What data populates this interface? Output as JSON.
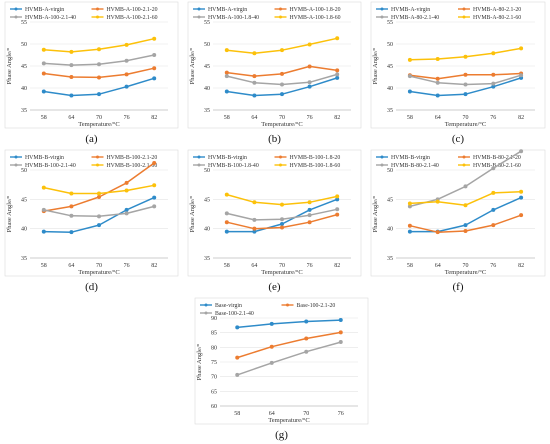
{
  "colors": {
    "blue": "#2e8bc9",
    "orange": "#ec7c30",
    "gray": "#a5a5a5",
    "yellow": "#fcc10a"
  },
  "chart_data": [
    {
      "type": "line",
      "panel_label": "(a)",
      "xlabel": "Temperature/°C",
      "ylabel": "Phase Angle/°",
      "categories": [
        "58",
        "64",
        "70",
        "76",
        "82"
      ],
      "ylim": [
        35,
        55
      ],
      "yticks": [
        35,
        40,
        45,
        50,
        55
      ],
      "series": [
        {
          "name": "HVMB-A-virgin",
          "color": "#2e8bc9",
          "values": [
            39.2,
            38.3,
            38.6,
            40.3,
            42.2
          ]
        },
        {
          "name": "HVMB-A-100-2.1-20",
          "color": "#ec7c30",
          "values": [
            43.3,
            42.5,
            42.4,
            43.1,
            44.5
          ]
        },
        {
          "name": "HVMB-A-100-2.1-40",
          "color": "#a5a5a5",
          "values": [
            45.6,
            45.2,
            45.4,
            46.2,
            47.5
          ]
        },
        {
          "name": "HVMB-A-100-2.1-60",
          "color": "#fcc10a",
          "values": [
            48.7,
            48.2,
            48.8,
            49.8,
            51.2
          ]
        }
      ]
    },
    {
      "type": "line",
      "panel_label": "(b)",
      "xlabel": "Temperature/°C",
      "ylabel": "Phase Angle/°",
      "categories": [
        "58",
        "64",
        "70",
        "76",
        "82"
      ],
      "ylim": [
        35,
        55
      ],
      "yticks": [
        35,
        40,
        45,
        50,
        55
      ],
      "series": [
        {
          "name": "HVMB-A-virgin",
          "color": "#2e8bc9",
          "values": [
            39.2,
            38.3,
            38.6,
            40.3,
            42.3
          ]
        },
        {
          "name": "HVMB-A-100-1.8-20",
          "color": "#ec7c30",
          "values": [
            43.5,
            42.7,
            43.2,
            44.9,
            44.0
          ]
        },
        {
          "name": "HVMB-A-100-1.8-40",
          "color": "#a5a5a5",
          "values": [
            42.7,
            41.2,
            40.8,
            41.3,
            43.1
          ]
        },
        {
          "name": "HVMB-A-100-1.8-60",
          "color": "#fcc10a",
          "values": [
            48.6,
            47.9,
            48.6,
            49.9,
            51.3
          ]
        }
      ]
    },
    {
      "type": "line",
      "panel_label": "(c)",
      "xlabel": "Temperature/°C",
      "ylabel": "Phase Angle/°",
      "categories": [
        "58",
        "64",
        "70",
        "76",
        "82"
      ],
      "ylim": [
        35,
        55
      ],
      "yticks": [
        35,
        40,
        45,
        50,
        55
      ],
      "series": [
        {
          "name": "HVMB-A-virgin",
          "color": "#2e8bc9",
          "values": [
            39.2,
            38.3,
            38.6,
            40.3,
            42.3
          ]
        },
        {
          "name": "HVMB-A-80-2.1-20",
          "color": "#ec7c30",
          "values": [
            42.9,
            42.1,
            43.0,
            43.0,
            43.3
          ]
        },
        {
          "name": "HVMB-A-80-2.1-40",
          "color": "#a5a5a5",
          "values": [
            42.7,
            41.2,
            40.8,
            41.0,
            42.9
          ]
        },
        {
          "name": "HVMB-A-80-2.1-60",
          "color": "#fcc10a",
          "values": [
            46.4,
            46.6,
            47.1,
            47.9,
            49.0
          ]
        }
      ]
    },
    {
      "type": "line",
      "panel_label": "(d)",
      "xlabel": "Temperature/°C",
      "ylabel": "Phase Angle/°",
      "categories": [
        "58",
        "64",
        "70",
        "76",
        "82"
      ],
      "ylim": [
        35,
        50
      ],
      "yticks": [
        35,
        40,
        45,
        50
      ],
      "series": [
        {
          "name": "HVMB-B-virgin",
          "color": "#2e8bc9",
          "values": [
            39.5,
            39.4,
            40.6,
            43.2,
            45.3
          ]
        },
        {
          "name": "HVMB-B-100-2.1-20",
          "color": "#ec7c30",
          "values": [
            43.0,
            43.8,
            45.4,
            47.8,
            51.2
          ]
        },
        {
          "name": "HVMB-B-100-2.1-40",
          "color": "#a5a5a5",
          "values": [
            43.2,
            42.2,
            42.1,
            42.6,
            43.8
          ]
        },
        {
          "name": "HVMB-B-100-2.1-60",
          "color": "#fcc10a",
          "values": [
            47.0,
            46.0,
            46.0,
            46.5,
            47.4
          ]
        }
      ]
    },
    {
      "type": "line",
      "panel_label": "(e)",
      "xlabel": "Temperature/°C",
      "ylabel": "Phase Angle/°",
      "categories": [
        "58",
        "64",
        "70",
        "76",
        "82"
      ],
      "ylim": [
        35,
        50
      ],
      "yticks": [
        35,
        40,
        45,
        50
      ],
      "series": [
        {
          "name": "HVMB-B-virgin",
          "color": "#2e8bc9",
          "values": [
            39.5,
            39.5,
            40.8,
            43.2,
            45.0
          ]
        },
        {
          "name": "HVMB-B-100-1.8-20",
          "color": "#ec7c30",
          "values": [
            41.1,
            40.0,
            40.2,
            41.1,
            42.4
          ]
        },
        {
          "name": "HVMB-B-100-1.8-40",
          "color": "#a5a5a5",
          "values": [
            42.6,
            41.5,
            41.6,
            42.3,
            43.3
          ]
        },
        {
          "name": "HVMB-B-100-1.8-60",
          "color": "#fcc10a",
          "values": [
            45.8,
            44.5,
            44.1,
            44.5,
            45.5
          ]
        }
      ]
    },
    {
      "type": "line",
      "panel_label": "(f)",
      "xlabel": "Temperature/°C",
      "ylabel": "Phase Angle/°",
      "categories": [
        "58",
        "64",
        "70",
        "76",
        "82"
      ],
      "ylim": [
        35,
        50
      ],
      "yticks": [
        35,
        40,
        45,
        50
      ],
      "series": [
        {
          "name": "HVMB-B-virgin",
          "color": "#2e8bc9",
          "values": [
            39.5,
            39.5,
            40.6,
            43.2,
            45.3
          ]
        },
        {
          "name": "HVMB-B-80-2.1-20",
          "color": "#ec7c30",
          "values": [
            40.5,
            39.4,
            39.6,
            40.6,
            42.3
          ]
        },
        {
          "name": "HVMB-B-80-2.1-40",
          "color": "#a5a5a5",
          "values": [
            43.8,
            45.0,
            47.2,
            50.3,
            53.2
          ]
        },
        {
          "name": "HVMB-B-80-2.1-60",
          "color": "#fcc10a",
          "values": [
            44.3,
            44.6,
            44.0,
            46.1,
            46.3
          ]
        }
      ]
    },
    {
      "type": "line",
      "panel_label": "(g)",
      "xlabel": "Temperature/°C",
      "ylabel": "Phase Angle/°",
      "categories": [
        "58",
        "64",
        "70",
        "76"
      ],
      "ylim": [
        60,
        90
      ],
      "yticks": [
        60,
        65,
        70,
        75,
        80,
        85,
        90
      ],
      "series": [
        {
          "name": "Base-virgin",
          "color": "#2e8bc9",
          "values": [
            86.8,
            88.0,
            88.8,
            89.3
          ]
        },
        {
          "name": "Base-100-2.1-20",
          "color": "#ec7c30",
          "values": [
            76.5,
            80.2,
            83.0,
            85.1
          ]
        },
        {
          "name": "Base-100-2.1-40",
          "color": "#a5a5a5",
          "values": [
            70.6,
            74.7,
            78.5,
            81.8
          ]
        }
      ]
    }
  ]
}
